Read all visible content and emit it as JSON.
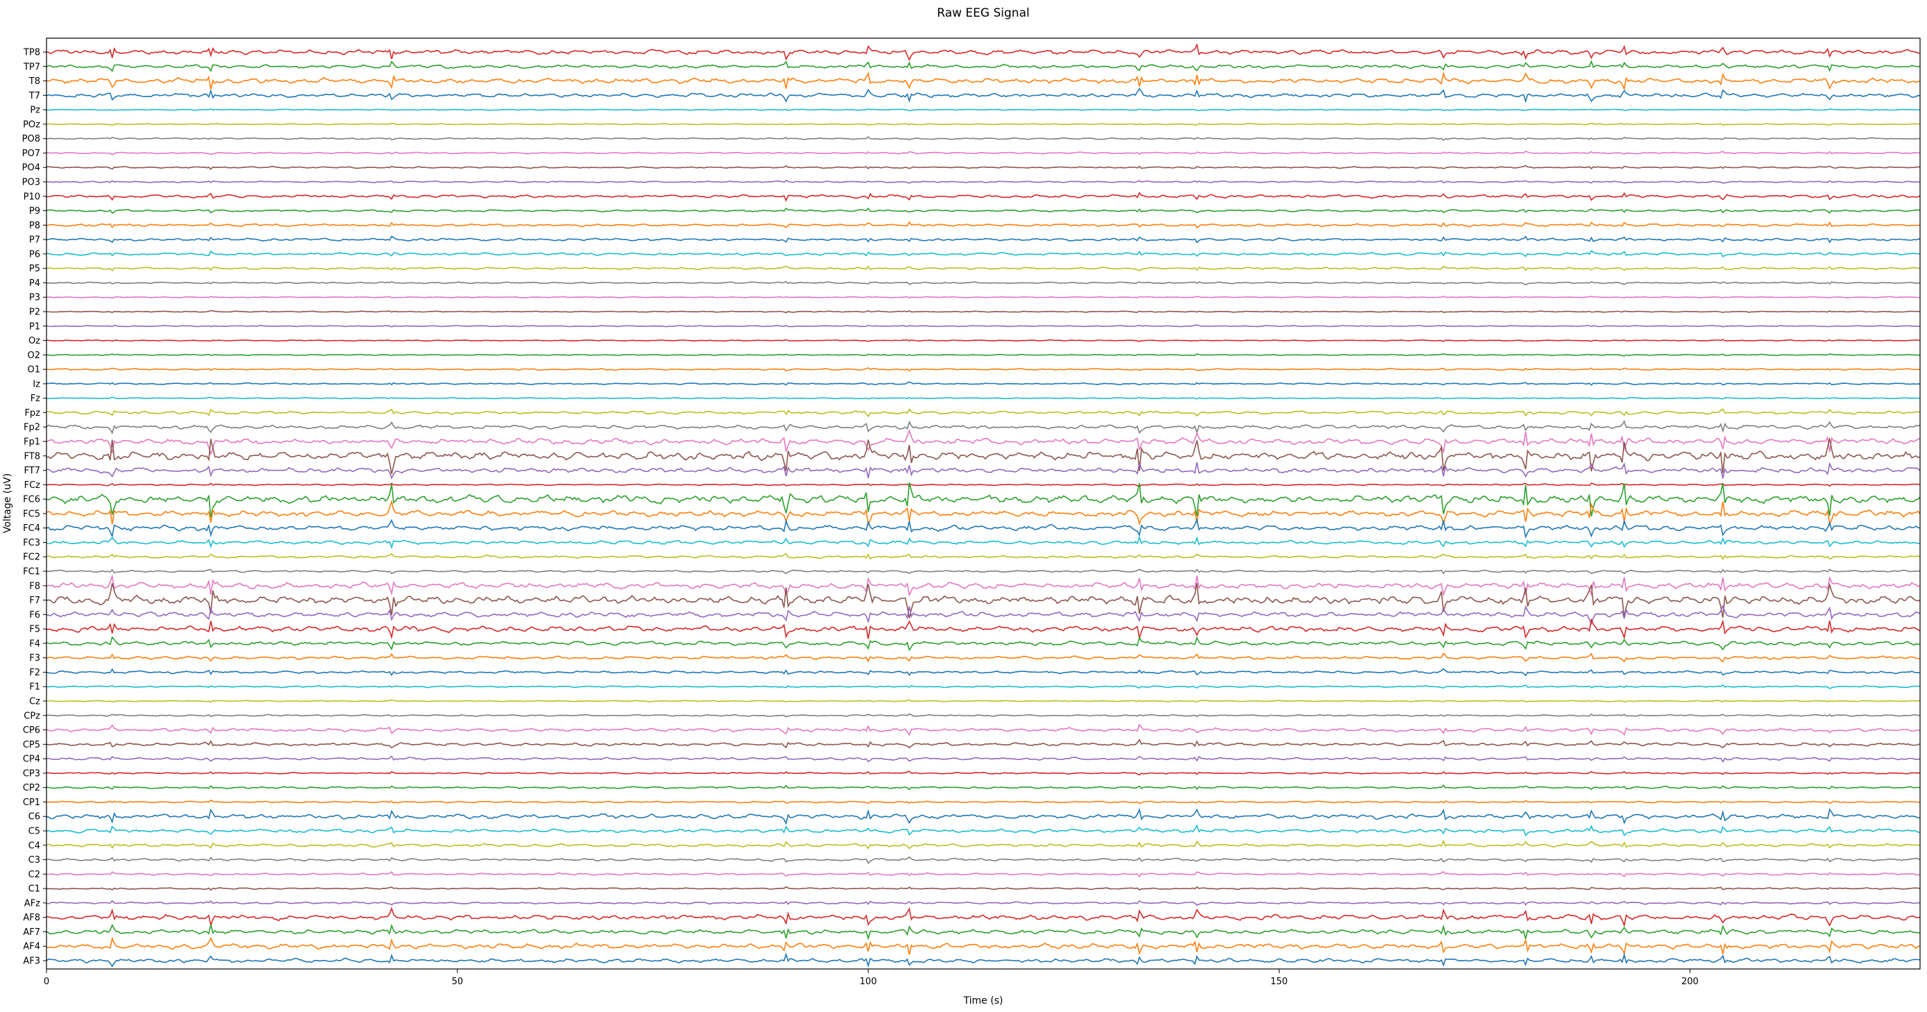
{
  "chart_data": {
    "type": "line",
    "title": "Raw EEG Signal",
    "xlabel": "Time (s)",
    "ylabel": "Voltage (uV)",
    "xlim": [
      0,
      228
    ],
    "xticks": [
      0,
      50,
      100,
      150,
      200
    ],
    "grid": false,
    "legend": "none",
    "channels_top_to_bottom": [
      "TP8",
      "TP7",
      "T8",
      "T7",
      "Pz",
      "POz",
      "PO8",
      "PO7",
      "PO4",
      "PO3",
      "P10",
      "P9",
      "P8",
      "P7",
      "P6",
      "P5",
      "P4",
      "P3",
      "P2",
      "P1",
      "Oz",
      "O2",
      "O1",
      "Iz",
      "Fz",
      "Fpz",
      "Fp2",
      "Fp1",
      "FT8",
      "FT7",
      "FCz",
      "FC6",
      "FC5",
      "FC4",
      "FC3",
      "FC2",
      "FC1",
      "F8",
      "F7",
      "F6",
      "F5",
      "F4",
      "F3",
      "F2",
      "F1",
      "Cz",
      "CPz",
      "CP6",
      "CP5",
      "CP4",
      "CP3",
      "CP2",
      "CP1",
      "C6",
      "C5",
      "C4",
      "C3",
      "C2",
      "C1",
      "AFz",
      "AF8",
      "AF7",
      "AF4",
      "AF3"
    ],
    "series_colors": [
      "#1f77b4",
      "#ff7f0e",
      "#2ca02c",
      "#d62728",
      "#9467bd",
      "#8c564b",
      "#e377c2",
      "#7f7f7f",
      "#bcbd22",
      "#17becf"
    ],
    "channel_activity": {
      "TP8": 0.9,
      "TP7": 0.7,
      "T8": 1.0,
      "T7": 0.8,
      "Pz": 0.2,
      "POz": 0.2,
      "PO8": 0.3,
      "PO7": 0.3,
      "PO4": 0.3,
      "PO3": 0.3,
      "P10": 0.6,
      "P9": 0.4,
      "P8": 0.5,
      "P7": 0.5,
      "P6": 0.5,
      "P5": 0.4,
      "P4": 0.3,
      "P3": 0.2,
      "P2": 0.2,
      "P1": 0.2,
      "Oz": 0.2,
      "O2": 0.2,
      "O1": 0.3,
      "Iz": 0.3,
      "Fz": 0.2,
      "Fpz": 0.6,
      "Fp2": 0.8,
      "Fp1": 1.2,
      "FT8": 1.6,
      "FT7": 1.0,
      "FCz": 0.3,
      "FC6": 1.6,
      "FC5": 1.2,
      "FC4": 1.0,
      "FC3": 0.7,
      "FC2": 0.5,
      "FC1": 0.4,
      "F8": 1.2,
      "F7": 1.6,
      "F6": 1.0,
      "F5": 1.1,
      "F4": 0.8,
      "F3": 0.6,
      "F2": 0.5,
      "F1": 0.3,
      "Cz": 0.2,
      "CPz": 0.3,
      "CP6": 0.7,
      "CP5": 0.6,
      "CP4": 0.5,
      "CP3": 0.3,
      "CP2": 0.4,
      "CP1": 0.3,
      "C6": 0.9,
      "C5": 0.7,
      "C4": 0.6,
      "C3": 0.5,
      "C2": 0.4,
      "C1": 0.3,
      "AFz": 0.4,
      "AF8": 1.0,
      "AF7": 0.9,
      "AF4": 1.0,
      "AF3": 0.8
    },
    "artifact_times_s": [
      8,
      20,
      42,
      90,
      100,
      105,
      133,
      140,
      170,
      180,
      188,
      192,
      204,
      217
    ],
    "units": {
      "x": "s",
      "y": "uV"
    }
  }
}
